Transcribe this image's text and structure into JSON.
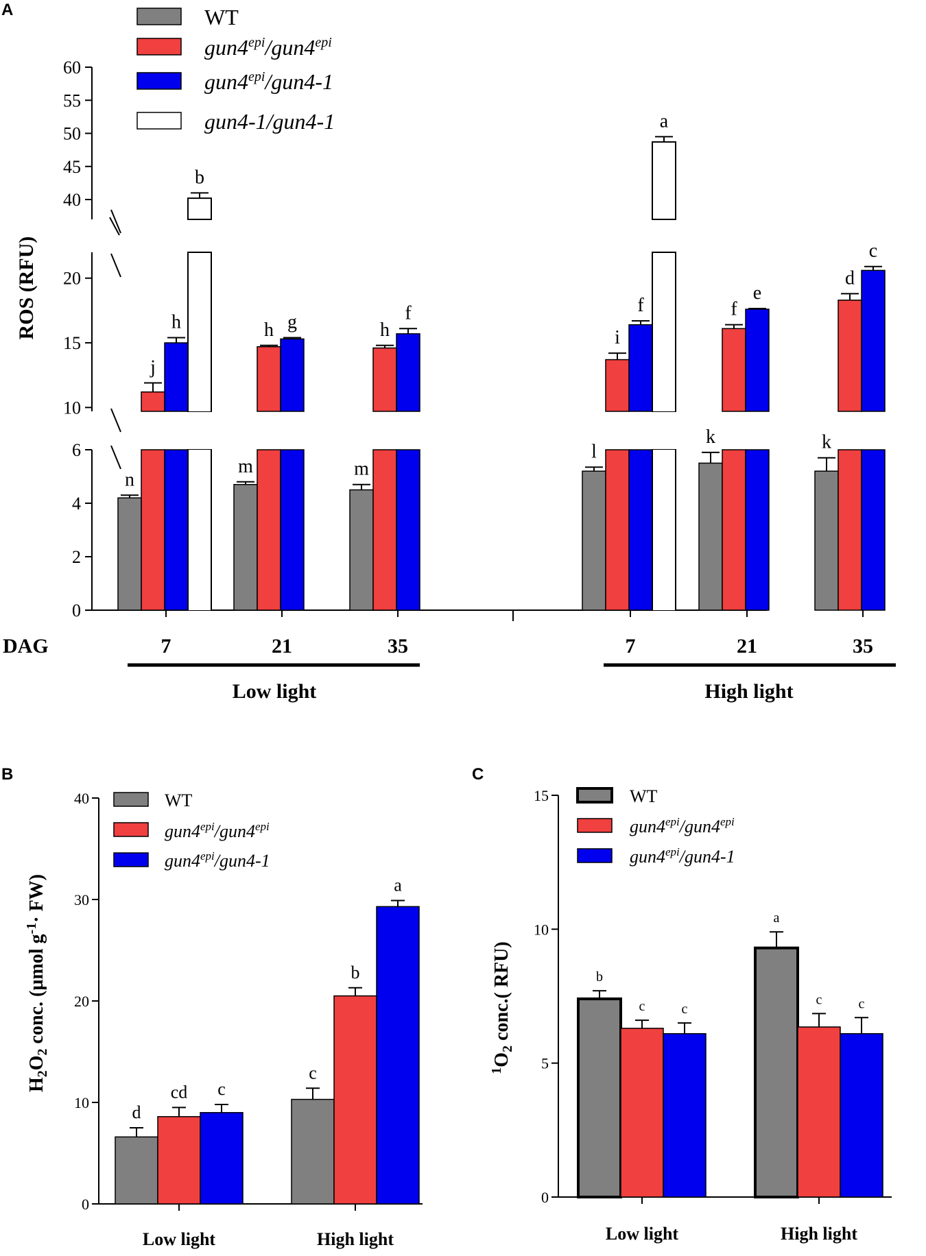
{
  "chart_data": [
    {
      "panel": "A",
      "type": "bar",
      "ylabel": "ROS (RFU)",
      "xlabel": "DAG",
      "axis_breaks": [
        [
          6,
          10
        ],
        [
          22,
          40
        ]
      ],
      "yticks_lower": [
        "0",
        "2",
        "4",
        "6"
      ],
      "yticks_middle": [
        "10",
        "15",
        "20"
      ],
      "yticks_upper": [
        "40",
        "45",
        "50",
        "55",
        "60"
      ],
      "groups": [
        {
          "name": "Low light",
          "categories": [
            "7",
            "21",
            "35"
          ]
        },
        {
          "name": "High light",
          "categories": [
            "7",
            "21",
            "35"
          ]
        }
      ],
      "series": [
        {
          "name": "WT",
          "values": [
            4.2,
            4.7,
            4.5,
            5.2,
            5.5,
            5.2
          ],
          "errors": [
            0.1,
            0.1,
            0.2,
            0.15,
            0.4,
            0.5
          ],
          "labels": [
            "n",
            "m",
            "m",
            "l",
            "k",
            "k"
          ]
        },
        {
          "name": "gun4epi/gun4epi",
          "values": [
            11.2,
            14.7,
            14.6,
            13.7,
            16.1,
            18.3
          ],
          "errors": [
            0.7,
            0.1,
            0.2,
            0.5,
            0.3,
            0.5
          ],
          "labels": [
            "j",
            "h",
            "h",
            "i",
            "f",
            "d"
          ]
        },
        {
          "name": "gun4epi/gun4-1",
          "values": [
            15.0,
            15.3,
            15.7,
            16.4,
            17.6,
            20.6
          ],
          "errors": [
            0.4,
            0.1,
            0.4,
            0.3,
            0.05,
            0.3
          ],
          "labels": [
            "h",
            "g",
            "f",
            "f",
            "e",
            "c"
          ]
        },
        {
          "name": "gun4-1/gun4-1",
          "values": [
            40.2,
            null,
            null,
            48.7,
            null,
            null
          ],
          "errors": [
            0.8,
            null,
            null,
            0.8,
            null,
            null
          ],
          "labels": [
            "b",
            "",
            "",
            "a",
            "",
            ""
          ]
        }
      ]
    },
    {
      "panel": "B",
      "type": "bar",
      "ylabel": "H2O2 conc. (µmol g-1 · FW)",
      "ylim": [
        0,
        40
      ],
      "yticks": [
        "0",
        "10",
        "20",
        "30",
        "40"
      ],
      "categories": [
        "Low light",
        "High light"
      ],
      "series": [
        {
          "name": "WT",
          "values": [
            6.6,
            10.3
          ],
          "errors": [
            0.9,
            1.1
          ],
          "labels": [
            "d",
            "c"
          ]
        },
        {
          "name": "gun4epi/gun4epi",
          "values": [
            8.6,
            20.5
          ],
          "errors": [
            0.9,
            0.8
          ],
          "labels": [
            "cd",
            "b"
          ]
        },
        {
          "name": "gun4epi/gun4-1",
          "values": [
            9.0,
            29.3
          ],
          "errors": [
            0.8,
            0.6
          ],
          "labels": [
            "c",
            "a"
          ]
        }
      ]
    },
    {
      "panel": "C",
      "type": "bar",
      "ylabel": "1O2 conc.( RFU)",
      "ylim": [
        0,
        15
      ],
      "yticks": [
        "0",
        "5",
        "10",
        "15"
      ],
      "categories": [
        "Low light",
        "High light"
      ],
      "series": [
        {
          "name": "WT",
          "values": [
            7.4,
            9.3
          ],
          "errors": [
            0.3,
            0.6
          ],
          "labels": [
            "b",
            "a"
          ]
        },
        {
          "name": "gun4epi/gun4epi",
          "values": [
            6.3,
            6.35
          ],
          "errors": [
            0.3,
            0.5
          ],
          "labels": [
            "c",
            "c"
          ]
        },
        {
          "name": "gun4epi/gun4-1",
          "values": [
            6.1,
            6.1
          ],
          "errors": [
            0.4,
            0.6
          ],
          "labels": [
            "c",
            "c"
          ]
        }
      ]
    }
  ],
  "panels": {
    "a": "A",
    "b": "B",
    "c": "C"
  },
  "legend": {
    "wt": "WT",
    "s2": {
      "gene": "gun4",
      "sup": "epi",
      "sep": "/",
      "gene2": "gun4",
      "sup2": "epi"
    },
    "s3": {
      "gene": "gun4",
      "sup": "epi",
      "rest": "/gun4-1"
    },
    "s4": "gun4-1/gun4-1"
  },
  "labels": {
    "ros": "ROS (RFU)",
    "dag": "DAG",
    "low_light": "Low light",
    "high_light": "High light",
    "h2o2": {
      "h": "H",
      "sub": "2",
      "o": "O",
      "sub2": "2",
      "rest": " conc. (µmol g",
      "sup": "-1",
      "end": "· FW)"
    },
    "o2": {
      "sup": "1",
      "o": "O",
      "sub": "2",
      "rest": " conc.( RFU)"
    }
  },
  "colors": {
    "wt": "#808080",
    "epi": "#f04040",
    "het": "#0000ee",
    "null": "#ffffff",
    "axis": "#000000"
  }
}
